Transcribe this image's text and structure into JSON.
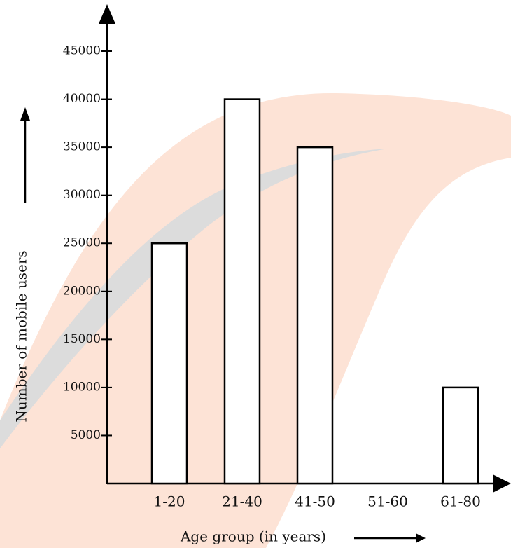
{
  "chart_data": {
    "type": "bar",
    "x_label": "Age group (in years)",
    "y_label": "Number of mobile users",
    "categories": [
      "1-20",
      "21-40",
      "41-50",
      "51-60",
      "61-80"
    ],
    "values": [
      25000,
      40000,
      35000,
      0,
      10000
    ],
    "color": "#ffffff",
    "ylim": [
      0,
      45000
    ],
    "yticks": [
      5000,
      10000,
      15000,
      20000,
      25000,
      30000,
      35000,
      40000,
      45000
    ],
    "grid": false
  }
}
